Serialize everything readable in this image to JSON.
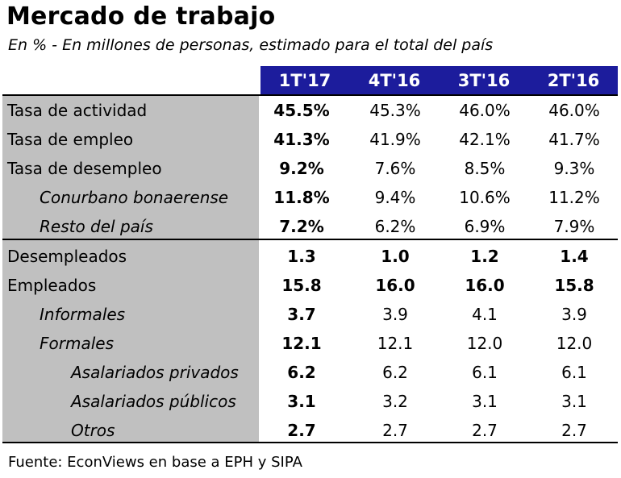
{
  "title": "Mercado de trabajo",
  "subtitle": "En % - En millones de personas, estimado para el total del país",
  "source": "Fuente: EconViews en base a EPH y SIPA",
  "colors": {
    "header_bg": "#1c1c9c",
    "header_text": "#ffffff",
    "label_bg": "#c0c0c0"
  },
  "chart_data": {
    "type": "table",
    "columns": [
      "1T'17",
      "4T'16",
      "3T'16",
      "2T'16"
    ],
    "rows": [
      {
        "label": "Tasa de actividad",
        "indent": 1,
        "bold_all": false,
        "values": [
          "45.5%",
          "45.3%",
          "46.0%",
          "46.0%"
        ]
      },
      {
        "label": "Tasa de empleo",
        "indent": 1,
        "bold_all": false,
        "values": [
          "41.3%",
          "41.9%",
          "42.1%",
          "41.7%"
        ]
      },
      {
        "label": "Tasa de desempleo",
        "indent": 1,
        "bold_all": false,
        "values": [
          "9.2%",
          "7.6%",
          "8.5%",
          "9.3%"
        ]
      },
      {
        "label": "Conurbano bonaerense",
        "indent": 2,
        "bold_all": false,
        "values": [
          "11.8%",
          "9.4%",
          "10.6%",
          "11.2%"
        ]
      },
      {
        "label": "Resto del país",
        "indent": 2,
        "bold_all": false,
        "values": [
          "7.2%",
          "6.2%",
          "6.9%",
          "7.9%"
        ]
      },
      {
        "label": "Desempleados",
        "indent": 1,
        "bold_all": true,
        "values": [
          "1.3",
          "1.0",
          "1.2",
          "1.4"
        ]
      },
      {
        "label": "Empleados",
        "indent": 1,
        "bold_all": true,
        "values": [
          "15.8",
          "16.0",
          "16.0",
          "15.8"
        ]
      },
      {
        "label": "Informales",
        "indent": 2,
        "bold_all": false,
        "values": [
          "3.7",
          "3.9",
          "4.1",
          "3.9"
        ]
      },
      {
        "label": "Formales",
        "indent": 2,
        "bold_all": false,
        "values": [
          "12.1",
          "12.1",
          "12.0",
          "12.0"
        ]
      },
      {
        "label": "Asalariados privados",
        "indent": 3,
        "bold_all": false,
        "values": [
          "6.2",
          "6.2",
          "6.1",
          "6.1"
        ]
      },
      {
        "label": "Asalariados públicos",
        "indent": 3,
        "bold_all": false,
        "values": [
          "3.1",
          "3.2",
          "3.1",
          "3.1"
        ]
      },
      {
        "label": "Otros",
        "indent": 3,
        "bold_all": false,
        "values": [
          "2.7",
          "2.7",
          "2.7",
          "2.7"
        ]
      }
    ]
  }
}
